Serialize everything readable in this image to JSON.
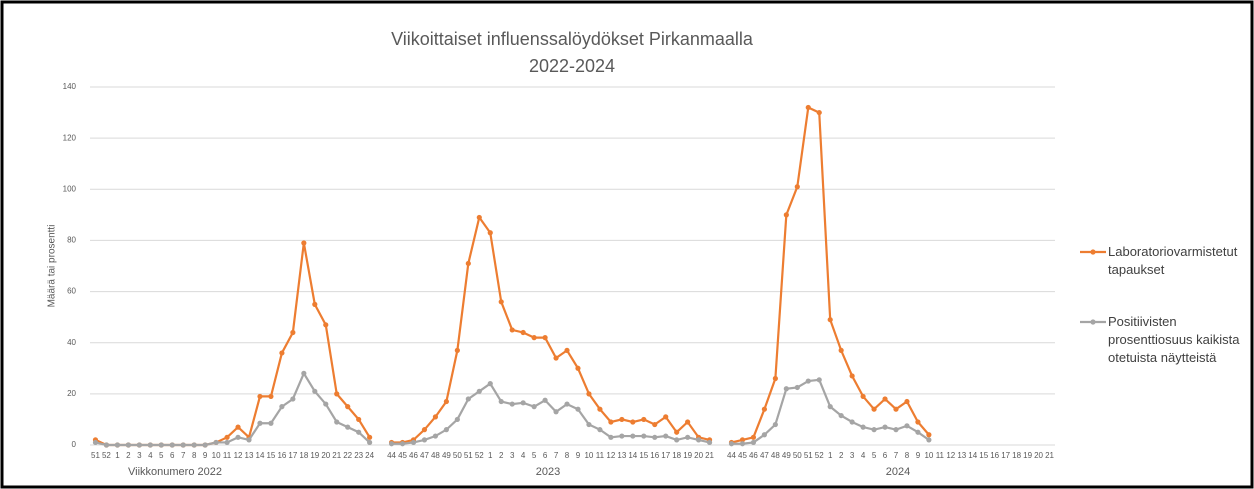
{
  "chart_data": {
    "type": "line",
    "title": "Viikoittaiset influenssalöydökset Pirkanmaalla",
    "subtitle": "2022-2024",
    "y_label": "Määrä tai prosentti",
    "annotations": [
      "Viikkonumero 2022",
      "2023",
      "2024"
    ],
    "categories": [
      "51",
      "52",
      "1",
      "2",
      "3",
      "4",
      "5",
      "6",
      "7",
      "8",
      "9",
      "10",
      "11",
      "12",
      "13",
      "14",
      "15",
      "16",
      "17",
      "18",
      "19",
      "20",
      "21",
      "22",
      "23",
      "24",
      null,
      "44",
      "45",
      "46",
      "47",
      "48",
      "49",
      "50",
      "51",
      "52",
      "1",
      "2",
      "3",
      "4",
      "5",
      "6",
      "7",
      "8",
      "9",
      "10",
      "11",
      "12",
      "13",
      "14",
      "15",
      "16",
      "17",
      "18",
      "19",
      "20",
      "21",
      null,
      "44",
      "45",
      "46",
      "47",
      "48",
      "49",
      "50",
      "51",
      "52",
      "1",
      "2",
      "3",
      "4",
      "5",
      "6",
      "7",
      "8",
      "9",
      "10",
      "11",
      "12",
      "13",
      "14",
      "15",
      "16",
      "17",
      "18",
      "19",
      "20",
      "21"
    ],
    "series": [
      {
        "name": "Laboratoriovarmistetut tapaukset",
        "color": "#ed7d31",
        "values": [
          2,
          0,
          0,
          0,
          0,
          0,
          0,
          0,
          0,
          0,
          0,
          1,
          3,
          7,
          3,
          19,
          19,
          36,
          44,
          79,
          55,
          47,
          20,
          15,
          10,
          3,
          null,
          1,
          1,
          2,
          6,
          11,
          17,
          37,
          71,
          89,
          83,
          56,
          45,
          44,
          42,
          42,
          34,
          37,
          30,
          20,
          14,
          9,
          10,
          9,
          10,
          8,
          11,
          5,
          9,
          3,
          2,
          null,
          1,
          2,
          3,
          14,
          26,
          90,
          101,
          132,
          130,
          49,
          37,
          27,
          19,
          14,
          18,
          14,
          17,
          9,
          4,
          null,
          null,
          null,
          null,
          null,
          null,
          null,
          null,
          null,
          null,
          null
        ]
      },
      {
        "name": "Positiivisten prosenttiosuus kaikista otetuista näytteistä",
        "color": "#a5a5a5",
        "values": [
          1,
          0,
          0,
          0,
          0,
          0,
          0,
          0,
          0,
          0,
          0,
          1,
          1,
          3,
          2,
          8.5,
          8.5,
          15,
          18,
          28,
          21,
          16,
          9,
          7,
          5,
          1,
          null,
          0.5,
          0.5,
          1,
          2,
          3.5,
          6,
          10,
          18,
          21,
          24,
          17,
          16,
          16.5,
          15,
          17.5,
          13,
          16,
          14,
          8,
          6,
          3,
          3.5,
          3.5,
          3.5,
          3,
          3.5,
          2,
          3,
          2,
          1,
          null,
          0.5,
          0.5,
          1,
          4,
          8,
          22,
          22.5,
          25,
          25.5,
          15,
          11.5,
          9,
          7,
          6,
          7,
          6,
          7.5,
          5,
          2,
          null,
          null,
          null,
          null,
          null,
          null,
          null,
          null,
          null,
          null,
          null
        ]
      }
    ],
    "ylim": [
      0,
      140
    ],
    "yticks": [
      0,
      20,
      40,
      60,
      80,
      100,
      120,
      140
    ],
    "grid": true,
    "legend": "right"
  }
}
